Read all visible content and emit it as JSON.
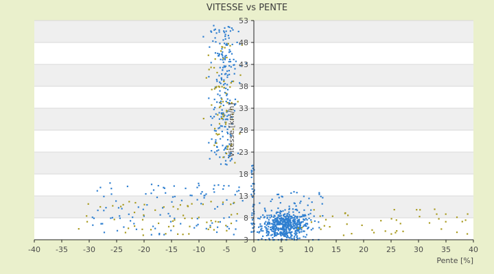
{
  "chart_data": {
    "type": "scatter",
    "title": "VITESSE vs PENTE",
    "xlabel": "Pente [%]",
    "ylabel": "Vitesse [km/h]",
    "xlim": [
      -40,
      40
    ],
    "ylim": [
      3,
      53
    ],
    "x_ticks": [
      "-40",
      "-35",
      "-30",
      "-25",
      "-20",
      "-15",
      "-10",
      "-5",
      "0",
      "5",
      "10",
      "15",
      "20",
      "25",
      "30",
      "35",
      "40"
    ],
    "y_ticks": [
      "3",
      "8",
      "13",
      "18",
      "23",
      "28",
      "33",
      "38",
      "43",
      "48",
      "53"
    ],
    "grid": true,
    "colors": {
      "background": "#eaf0cc",
      "plot_band_light": "#ffffff",
      "plot_band_dark": "#efefef",
      "series_main": "#2f7fd0",
      "series_secondary": "#a89a1e",
      "text": "#4a4a4a"
    },
    "series": [
      {
        "color": "#2f7fd0",
        "points": []
      },
      {
        "color": "#a89a1e",
        "points": []
      }
    ]
  }
}
